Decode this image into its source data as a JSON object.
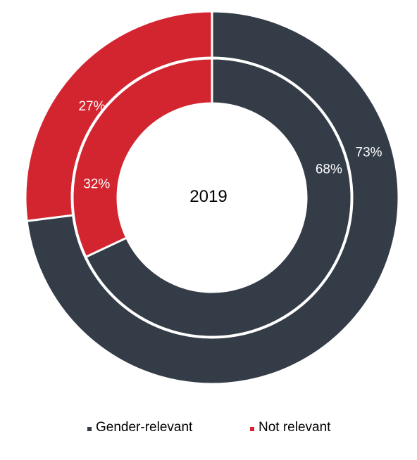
{
  "chart_data": {
    "type": "pie",
    "variant": "nested-donut",
    "center_label": "2019",
    "categories": [
      "Gender-relevant",
      "Not relevant"
    ],
    "colors": {
      "Gender-relevant": "#333c47",
      "Not relevant": "#d3252f",
      "separator": "#ffffff"
    },
    "rings": [
      {
        "ring": "outer",
        "values": [
          73,
          27
        ],
        "labels": [
          "73%",
          "27%"
        ]
      },
      {
        "ring": "inner",
        "values": [
          68,
          32
        ],
        "labels": [
          "68%",
          "32%"
        ]
      }
    ],
    "start_angle": "12 o'clock",
    "direction": "clockwise",
    "legend": {
      "position": "bottom",
      "items": [
        {
          "label": "Gender-relevant",
          "color": "#333c47"
        },
        {
          "label": "Not relevant",
          "color": "#d3252f"
        }
      ]
    }
  }
}
